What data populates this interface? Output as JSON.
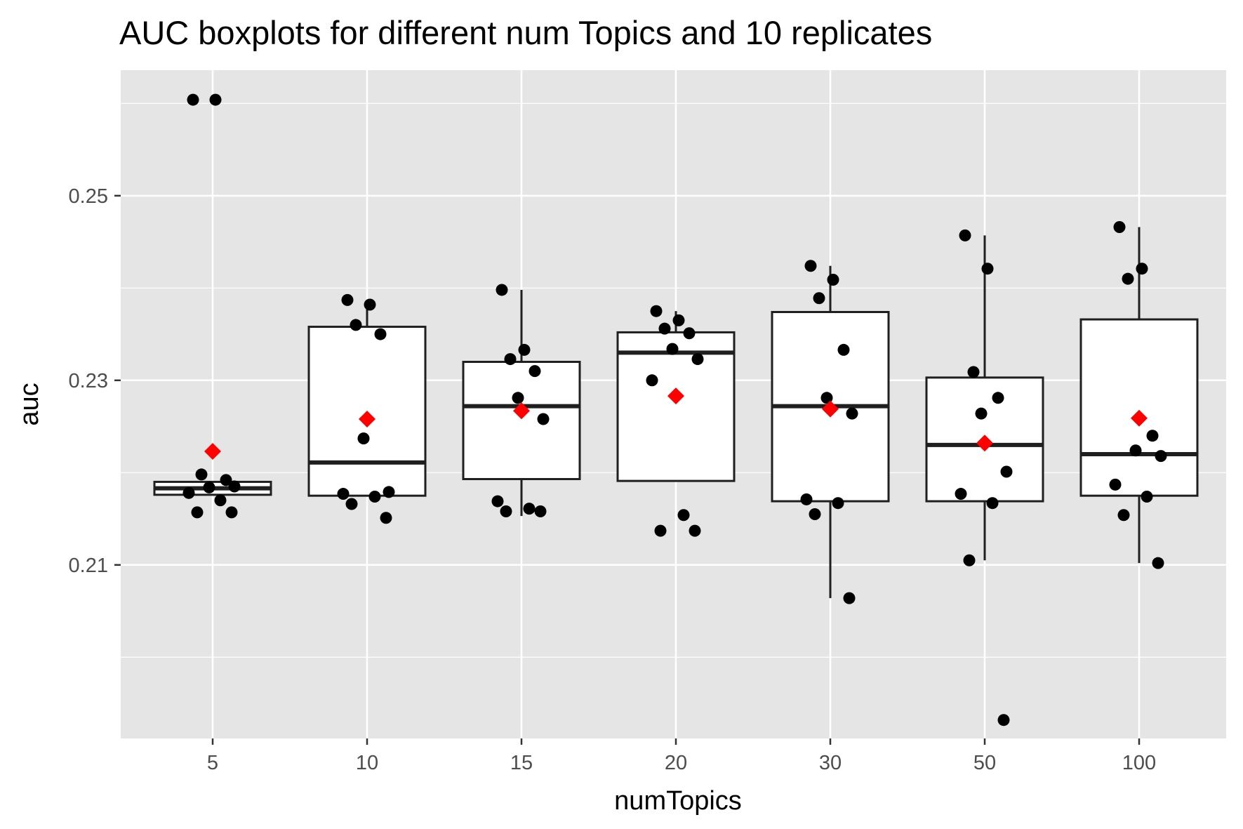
{
  "chart_data": {
    "type": "boxplot",
    "title": "AUC boxplots for different num Topics and 10 replicates",
    "xlabel": "numTopics",
    "ylabel": "auc",
    "categories": [
      "5",
      "10",
      "15",
      "20",
      "30",
      "50",
      "100"
    ],
    "ylim": [
      0.1912,
      0.2636
    ],
    "yticks": [
      0.21,
      0.23,
      0.25
    ],
    "ytick_labels": [
      "0.21",
      "0.23",
      "0.25"
    ],
    "grid": true,
    "legend": "none",
    "colors": {
      "panel": "#e5e5e5",
      "grid": "#ffffff",
      "box_line": "#1f1f1f",
      "box_fill": "#ffffff",
      "point": "#000000",
      "mean": "#ff0000",
      "tick_text": "#4d4d4d"
    },
    "boxes": [
      {
        "category": "5",
        "q1": 0.2176,
        "median": 0.2183,
        "q3": 0.219,
        "whisker_low": 0.2176,
        "whisker_high": 0.219,
        "mean": 0.2223
      },
      {
        "category": "10",
        "q1": 0.2175,
        "median": 0.2211,
        "q3": 0.2358,
        "whisker_low": 0.2175,
        "whisker_high": 0.2387,
        "mean": 0.2258
      },
      {
        "category": "15",
        "q1": 0.2193,
        "median": 0.2272,
        "q3": 0.232,
        "whisker_low": 0.2153,
        "whisker_high": 0.2398,
        "mean": 0.2267
      },
      {
        "category": "20",
        "q1": 0.2191,
        "median": 0.233,
        "q3": 0.2352,
        "whisker_low": 0.2191,
        "whisker_high": 0.2375,
        "mean": 0.2283
      },
      {
        "category": "30",
        "q1": 0.2169,
        "median": 0.2272,
        "q3": 0.2374,
        "whisker_low": 0.2064,
        "whisker_high": 0.2424,
        "mean": 0.2269
      },
      {
        "category": "50",
        "q1": 0.2169,
        "median": 0.223,
        "q3": 0.2303,
        "whisker_low": 0.2105,
        "whisker_high": 0.2457,
        "mean": 0.2232
      },
      {
        "category": "100",
        "q1": 0.2175,
        "median": 0.222,
        "q3": 0.2366,
        "whisker_low": 0.2102,
        "whisker_high": 0.2466,
        "mean": 0.2259
      }
    ],
    "points": [
      {
        "category": "5",
        "values": [
          0.2604,
          0.2604,
          0.2198,
          0.2192,
          0.2184,
          0.2185,
          0.2178,
          0.217,
          0.2157,
          0.2157
        ]
      },
      {
        "category": "10",
        "values": [
          0.2387,
          0.2382,
          0.236,
          0.235,
          0.2237,
          0.2179,
          0.2177,
          0.2174,
          0.2166,
          0.2151
        ]
      },
      {
        "category": "15",
        "values": [
          0.2398,
          0.2333,
          0.2323,
          0.231,
          0.2281,
          0.2258,
          0.2169,
          0.2161,
          0.2158,
          0.2158
        ]
      },
      {
        "category": "20",
        "values": [
          0.2375,
          0.2365,
          0.2356,
          0.2351,
          0.2334,
          0.2323,
          0.23,
          0.2154,
          0.2137,
          0.2137
        ]
      },
      {
        "category": "30",
        "values": [
          0.2424,
          0.2409,
          0.2389,
          0.2333,
          0.2281,
          0.2264,
          0.2171,
          0.2167,
          0.2155,
          0.2064
        ]
      },
      {
        "category": "50",
        "values": [
          0.2457,
          0.2421,
          0.2309,
          0.2281,
          0.2264,
          0.2201,
          0.2177,
          0.2167,
          0.2105,
          0.1932
        ]
      },
      {
        "category": "100",
        "values": [
          0.2466,
          0.2421,
          0.241,
          0.224,
          0.2224,
          0.2218,
          0.2187,
          0.2174,
          0.2154,
          0.2102
        ]
      }
    ]
  }
}
